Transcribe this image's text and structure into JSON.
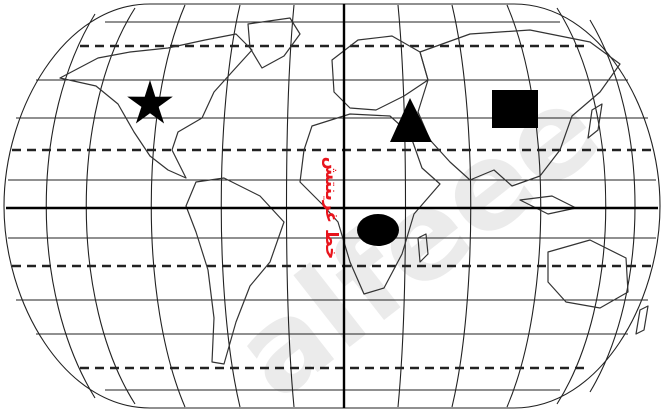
{
  "map": {
    "greenwich_label": "خط غرينتش",
    "watermark": "alfeee"
  },
  "markers": [
    {
      "id": "star",
      "shape": "star-icon",
      "color": "#000000"
    },
    {
      "id": "triangle",
      "shape": "triangle-icon",
      "color": "#000000"
    },
    {
      "id": "square",
      "shape": "square-icon",
      "color": "#000000"
    },
    {
      "id": "circle",
      "shape": "circle-icon",
      "color": "#000000"
    }
  ],
  "colors": {
    "label": "#e8141c",
    "lines": "#222222"
  }
}
